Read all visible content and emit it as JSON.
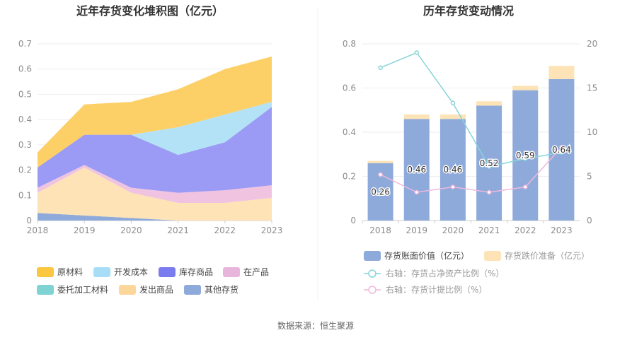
{
  "footer": {
    "source": "数据来源：恒生聚源"
  },
  "chart_data": [
    {
      "type": "area",
      "title": "近年存货变化堆积图（亿元）",
      "x": [
        "2018",
        "2019",
        "2020",
        "2021",
        "2022",
        "2023"
      ],
      "ylim": [
        0,
        0.7
      ],
      "yticks": [
        "0",
        "0.1",
        "0.2",
        "0.3",
        "0.4",
        "0.5",
        "0.6",
        "0.7"
      ],
      "grid": true,
      "stacked": true,
      "legend_position": "bottom",
      "series": [
        {
          "name": "其他存货",
          "color": "#8eaadb",
          "values": [
            0.03,
            0.02,
            0.01,
            0.0,
            0.0,
            0.0
          ]
        },
        {
          "name": "发出商品",
          "color": "#fde3b5",
          "values": [
            0.08,
            0.19,
            0.1,
            0.07,
            0.07,
            0.09
          ]
        },
        {
          "name": "委托加工材料",
          "color": "#7fd3d3",
          "values": [
            0.0,
            0.0,
            0.0,
            0.0,
            0.0,
            0.0
          ]
        },
        {
          "name": "在产品",
          "color": "#f0c4e0",
          "values": [
            0.02,
            0.01,
            0.02,
            0.04,
            0.05,
            0.05
          ]
        },
        {
          "name": "库存商品",
          "color": "#9b9bf5",
          "values": [
            0.08,
            0.12,
            0.21,
            0.15,
            0.19,
            0.31
          ]
        },
        {
          "name": "开发成本",
          "color": "#b3e2f7",
          "values": [
            0.0,
            0.0,
            0.0,
            0.11,
            0.11,
            0.02
          ]
        },
        {
          "name": "原材料",
          "color": "#fdd067",
          "values": [
            0.06,
            0.12,
            0.13,
            0.15,
            0.18,
            0.18
          ]
        }
      ],
      "legend_order": [
        "原材料",
        "开发成本",
        "库存商品",
        "在产品",
        "委托加工材料",
        "发出商品",
        "其他存货"
      ],
      "legend_colors": {
        "原材料": "#fbc640",
        "开发成本": "#a8ddf7",
        "库存商品": "#7b7bf0",
        "在产品": "#e8b6dc",
        "委托加工材料": "#7fd3d3",
        "发出商品": "#fdd79a",
        "其他存货": "#8eaadb"
      }
    },
    {
      "type": "bar",
      "title": "历年存货变动情况",
      "categories": [
        "2018",
        "2019",
        "2020",
        "2021",
        "2022",
        "2023"
      ],
      "ylim": [
        0,
        0.8
      ],
      "yticks": [
        "0",
        "0.2",
        "0.4",
        "0.6",
        "0.8"
      ],
      "y2lim": [
        0,
        20
      ],
      "y2ticks": [
        "0",
        "5",
        "10",
        "15",
        "20"
      ],
      "grid": true,
      "stacked": true,
      "legend_position": "bottom",
      "series": [
        {
          "name": "存货账面价值（亿元）",
          "type": "bar",
          "color": "#8eaadb",
          "values": [
            0.26,
            0.46,
            0.46,
            0.52,
            0.59,
            0.64
          ],
          "data_labels": [
            "0.26",
            "0.46",
            "0.46",
            "0.52",
            "0.59",
            "0.64"
          ]
        },
        {
          "name": "存货跌价准备（亿元）",
          "type": "bar",
          "color": "#fde3b5",
          "values": [
            0.01,
            0.02,
            0.02,
            0.02,
            0.02,
            0.06
          ]
        },
        {
          "name": "右轴：存货占净资产比例（%）",
          "type": "line",
          "axis": "right",
          "color": "#86d4d8",
          "values": [
            17.3,
            19.0,
            13.3,
            6.1,
            7.0,
            7.7
          ]
        },
        {
          "name": "右轴：存货计提比例（%）",
          "type": "line",
          "axis": "right",
          "color": "#efb8dc",
          "values": [
            5.2,
            3.2,
            3.8,
            3.2,
            3.8,
            8.3
          ]
        }
      ]
    }
  ]
}
